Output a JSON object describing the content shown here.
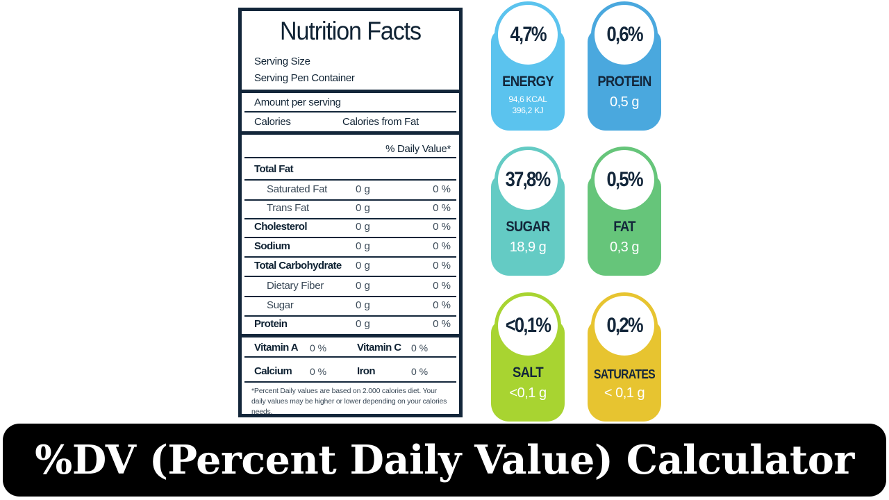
{
  "label": {
    "title": "Nutrition Facts",
    "serving_size": "Serving Size",
    "serving_container": "Serving Pen Container",
    "amount_per_serving": "Amount per serving",
    "calories": "Calories",
    "calories_from_fat": "Calories from Fat",
    "daily_value_header": "% Daily Value*",
    "nutrients": [
      {
        "name": "Total Fat",
        "amount": "",
        "percent": "",
        "style": "bold"
      },
      {
        "name": "Saturated Fat",
        "amount": "0 g",
        "percent": "0 %",
        "style": "sub"
      },
      {
        "name": "Trans Fat",
        "amount": "0 g",
        "percent": "0 %",
        "style": "sub"
      },
      {
        "name": "Cholesterol",
        "amount": "0 g",
        "percent": "0 %",
        "style": "bold"
      },
      {
        "name": "Sodium",
        "amount": "0 g",
        "percent": "0 %",
        "style": "bold"
      },
      {
        "name": "Total Carbohydrate",
        "amount": "0 g",
        "percent": "0 %",
        "style": "bold"
      },
      {
        "name": "Dietary Fiber",
        "amount": "0 g",
        "percent": "0 %",
        "style": "sub"
      },
      {
        "name": "Sugar",
        "amount": "0 g",
        "percent": "0 %",
        "style": "sub"
      },
      {
        "name": "Protein",
        "amount": "0 g",
        "percent": "0 %",
        "style": "bold"
      }
    ],
    "vitamins": [
      {
        "left_name": "Vitamin A",
        "left_pct": "0 %",
        "right_name": "Vitamin C",
        "right_pct": "0 %"
      },
      {
        "left_name": "Calcium",
        "left_pct": "0 %",
        "right_name": "Iron",
        "right_pct": "0 %"
      }
    ],
    "footnote": "*Percent Daily values are based on 2.000 calories diet. Your daily values may be higher or lower depending on your calories needs."
  },
  "badges": {
    "energy": {
      "percent": "4,7%",
      "name": "ENERGY",
      "value": "",
      "sub1": "94,6 KCAL",
      "sub2": "396,2 KJ",
      "color": "#5bc3ee",
      "ring": "#5bc3ee"
    },
    "protein": {
      "percent": "0,6%",
      "name": "PROTEIN",
      "value": "0,5 g",
      "color": "#4aa8de",
      "ring": "#4aa8de"
    },
    "sugar": {
      "percent": "37,8%",
      "name": "SUGAR",
      "value": "18,9 g",
      "color": "#64cbc4",
      "ring": "#64cbc4"
    },
    "fat": {
      "percent": "0,5%",
      "name": "FAT",
      "value": "0,3 g",
      "color": "#66c57a",
      "ring": "#66c57a"
    },
    "salt": {
      "percent": "<0,1%",
      "name": "SALT",
      "value": "<0,1 g",
      "color": "#a8d431",
      "ring": "#a8d431"
    },
    "saturates": {
      "percent": "0,2%",
      "name": "SATURATES",
      "value": "< 0,1 g",
      "color": "#e7c430",
      "ring": "#e7c430"
    }
  },
  "banner": {
    "title": "%DV (Percent Daily Value) Calculator"
  }
}
